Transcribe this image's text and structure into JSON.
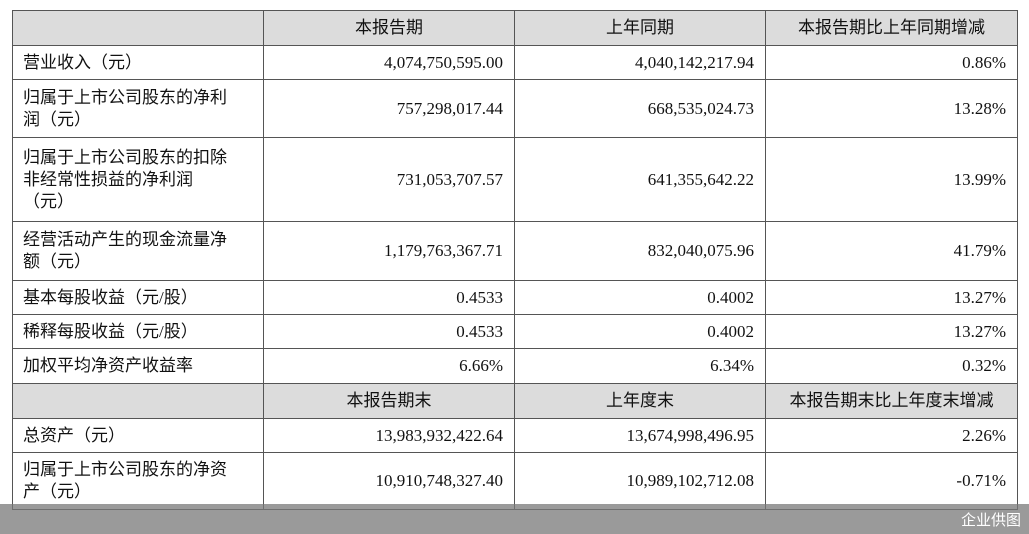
{
  "table": {
    "header": [
      "本报告期",
      "上年同期",
      "本报告期比上年同期增减"
    ],
    "rows": [
      [
        [
          "营业收入（元）"
        ],
        "4,074,750,595.00",
        "4,040,142,217.94",
        "0.86%"
      ],
      [
        [
          "归属于上市公司股东的净利",
          "润（元）"
        ],
        "757,298,017.44",
        "668,535,024.73",
        "13.28%"
      ],
      [
        [
          "归属于上市公司股东的扣除",
          "非经常性损益的净利润",
          "（元）"
        ],
        "731,053,707.57",
        "641,355,642.22",
        "13.99%"
      ],
      [
        [
          "经营活动产生的现金流量净",
          "额（元）"
        ],
        "1,179,763,367.71",
        "832,040,075.96",
        "41.79%"
      ],
      [
        [
          "基本每股收益（元/股）"
        ],
        "0.4533",
        "0.4002",
        "13.27%"
      ],
      [
        [
          "稀释每股收益（元/股）"
        ],
        "0.4533",
        "0.4002",
        "13.27%"
      ],
      [
        [
          "加权平均净资产收益率"
        ],
        "6.66%",
        "6.34%",
        "0.32%"
      ]
    ],
    "header2": [
      "本报告期末",
      "上年度末",
      "本报告期末比上年度末增减"
    ],
    "rows2": [
      [
        [
          "总资产（元）"
        ],
        "13,983,932,422.64",
        "13,674,998,496.95",
        "2.26%"
      ],
      [
        [
          "归属于上市公司股东的净资",
          "产（元）"
        ],
        "10,910,748,327.40",
        "10,989,102,712.08",
        "-0.71%"
      ]
    ]
  },
  "watermark": "企业供图"
}
